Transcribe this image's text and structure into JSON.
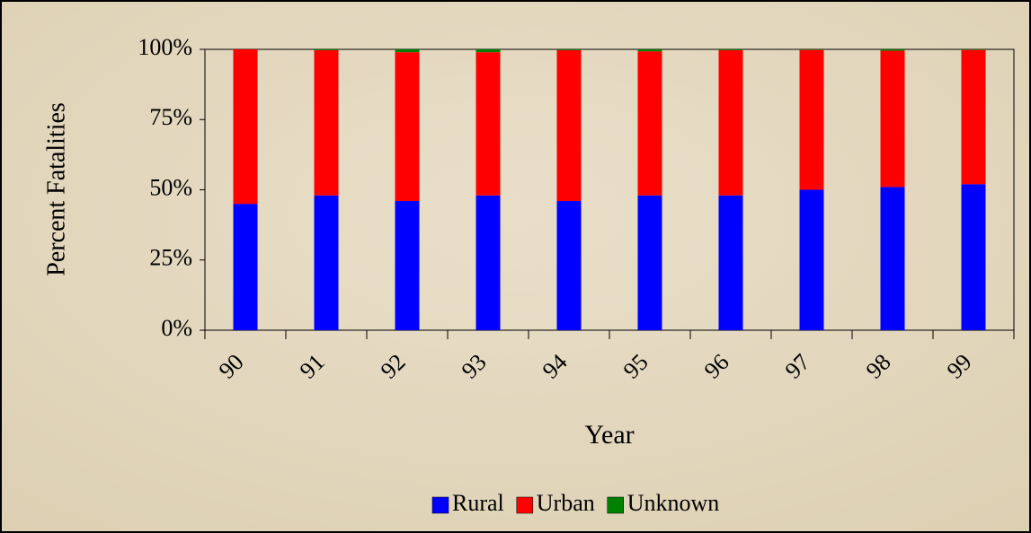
{
  "chart_data": {
    "type": "stacked_bar",
    "y_axis_title": "Percent Fatalities",
    "x_axis_title": "Year",
    "categories": [
      "90",
      "91",
      "92",
      "93",
      "94",
      "95",
      "96",
      "97",
      "98",
      "99"
    ],
    "series": [
      {
        "name": "Rural",
        "color": "#0000ff",
        "values": [
          45,
          48,
          46,
          48,
          46,
          48,
          48,
          50,
          51,
          52
        ]
      },
      {
        "name": "Urban",
        "color": "#ff0000",
        "values": [
          55,
          51.7,
          53,
          51,
          53.7,
          51.3,
          51.7,
          49.8,
          48.5,
          47.8
        ]
      },
      {
        "name": "Unknown",
        "color": "#008000",
        "values": [
          0,
          0.3,
          1,
          1,
          0.3,
          0.7,
          0.3,
          0.2,
          0.5,
          0.2
        ]
      }
    ],
    "ylim": [
      0,
      100
    ],
    "yticks": [
      {
        "value": 0,
        "label": "0%"
      },
      {
        "value": 25,
        "label": "25%"
      },
      {
        "value": 50,
        "label": "50%"
      },
      {
        "value": 75,
        "label": "75%"
      },
      {
        "value": 100,
        "label": "100%"
      }
    ],
    "legend": "bottom"
  }
}
